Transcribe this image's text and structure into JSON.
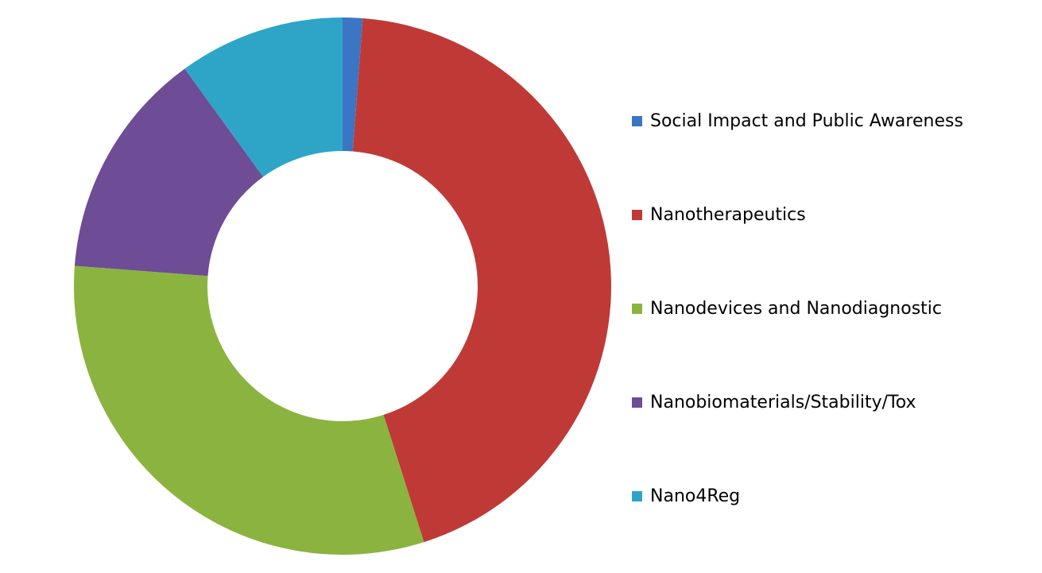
{
  "chart_data": {
    "type": "donut",
    "categories": [
      "Social Impact and Public Awareness",
      "Nanotherapeutics",
      "Nanodevices and Nanodiagnostic",
      "Nanobiomaterials/Stability/Tox",
      "Nano4Reg"
    ],
    "values": [
      1.2,
      43.9,
      31.1,
      13.8,
      10
    ],
    "colors": [
      "#3b76c4",
      "#bf3a36",
      "#8ab43f",
      "#6e4c96",
      "#2ea5c6"
    ],
    "legend": "right"
  }
}
